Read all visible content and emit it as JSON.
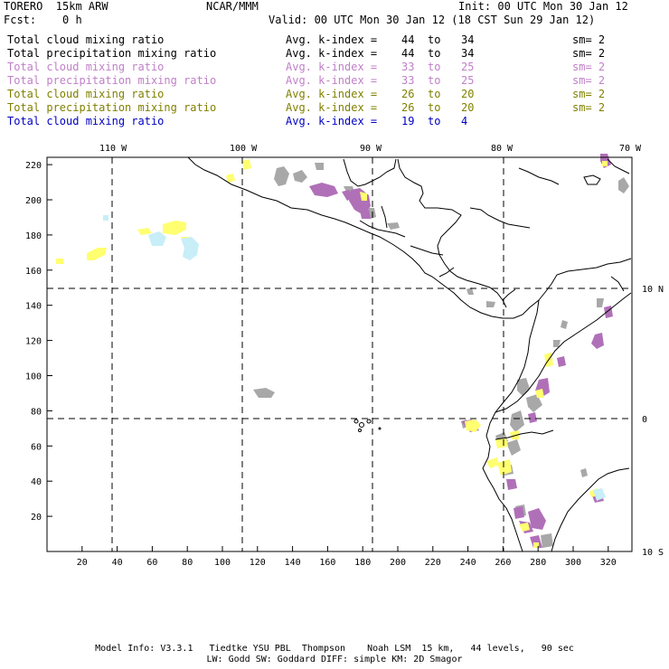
{
  "header": {
    "model": "TORERO  15km ARW",
    "org": "NCAR/MMM",
    "init": "Init: 00 UTC Mon 30 Jan 12",
    "fcst": "Fcst:    0 h",
    "valid": "Valid: 00 UTC Mon 30 Jan 12 (18 CST Sun 29 Jan 12)"
  },
  "legend": [
    {
      "field": "Total cloud mixing ratio",
      "stat": "Avg. k-index =",
      "from": "44",
      "to_word": "to",
      "to": "34",
      "sm": "sm= 2",
      "color": "#000000"
    },
    {
      "field": "Total precipitation mixing ratio",
      "stat": "Avg. k-index =",
      "from": "44",
      "to_word": "to",
      "to": "34",
      "sm": "sm= 2",
      "color": "#000000"
    },
    {
      "field": "Total cloud mixing ratio",
      "stat": "Avg. k-index =",
      "from": "33",
      "to_word": "to",
      "to": "25",
      "sm": "sm= 2",
      "color": "#c080c8"
    },
    {
      "field": "Total precipitation mixing ratio",
      "stat": "Avg. k-index =",
      "from": "33",
      "to_word": "to",
      "to": "25",
      "sm": "sm= 2",
      "color": "#c080c8"
    },
    {
      "field": "Total cloud mixing ratio",
      "stat": "Avg. k-index =",
      "from": "26",
      "to_word": "to",
      "to": "20",
      "sm": "sm= 2",
      "color": "#808000"
    },
    {
      "field": "Total precipitation mixing ratio",
      "stat": "Avg. k-index =",
      "from": "26",
      "to_word": "to",
      "to": "20",
      "sm": "sm= 2",
      "color": "#808000"
    },
    {
      "field": "Total cloud mixing ratio",
      "stat": "Avg. k-index =",
      "from": "19",
      "to_word": "to",
      "to": "4",
      "sm": "",
      "color": "#0000c0"
    }
  ],
  "map": {
    "lon_labels": [
      "110 W",
      "100 W",
      "90 W",
      "80 W",
      "70 W"
    ],
    "lat_labels": [
      "10 N",
      "0",
      "10 S"
    ],
    "y_ticks": [
      "220",
      "200",
      "180",
      "160",
      "140",
      "120",
      "100",
      "80",
      "60",
      "40",
      "20"
    ],
    "x_ticks": [
      "20",
      "40",
      "60",
      "80",
      "100",
      "120",
      "140",
      "160",
      "180",
      "200",
      "220",
      "240",
      "260",
      "280",
      "300",
      "320"
    ],
    "colors": {
      "gray": "#a8a8a8",
      "purple": "#b070b8",
      "yellow": "#ffff70",
      "lightblue": "#c8eef8",
      "border": "#000000"
    }
  },
  "footer": {
    "line1": "Model Info: V3.3.1   Tiedtke YSU PBL  Thompson    Noah LSM  15 km,   44 levels,   90 sec",
    "line2": "LW: Godd SW: Goddard DIFF: simple KM: 2D Smagor"
  }
}
